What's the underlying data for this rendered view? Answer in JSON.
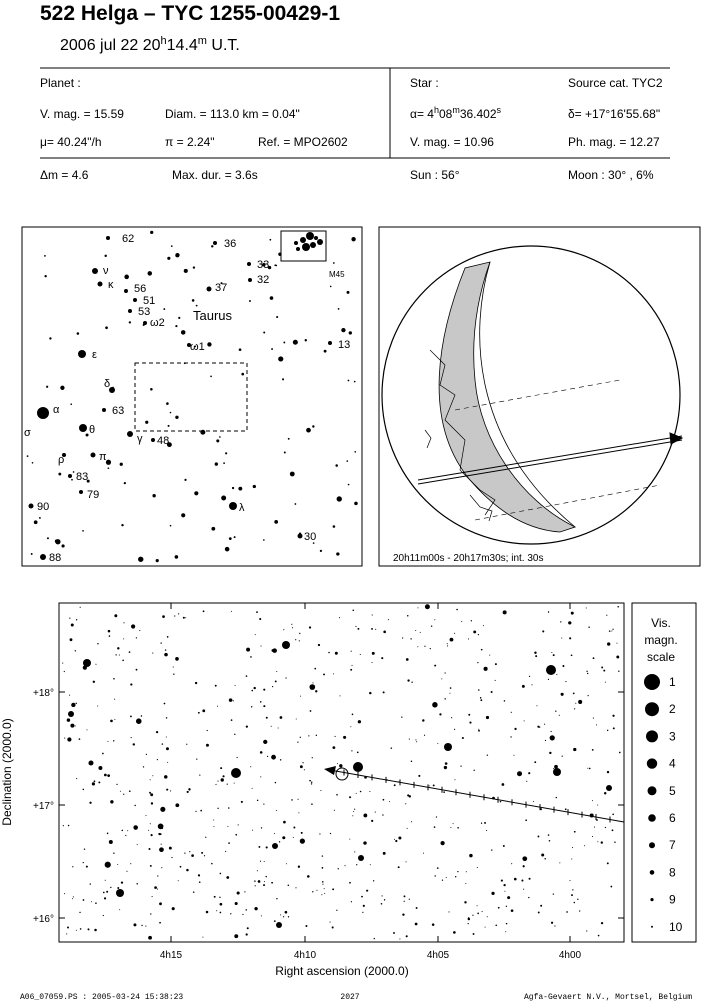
{
  "header": {
    "title": "522 Helga  –  TYC 1255-00429-1",
    "date": [
      "2006 jul 22  20",
      "h",
      "14.4",
      "m",
      " U.T."
    ]
  },
  "planet": {
    "label": "Planet :",
    "vmag": "V. mag. = 15.59",
    "diam": "Diam. = 113.0 km = 0.04\"",
    "mu": "μ= 40.24\"/h",
    "pi": "π = 2.24\"",
    "ref": "Ref. = MPO2602"
  },
  "star": {
    "label": "Star :",
    "source": "Source cat.  TYC2",
    "ra": [
      "α= 4",
      "h",
      "08",
      "m",
      "36.402",
      "s"
    ],
    "dec": "δ= +17°16'55.68\"",
    "vmag": "V. mag. = 10.96",
    "phmag": "Ph. mag. = 12.27"
  },
  "event": {
    "dm": "Δm = 4.6",
    "maxdur": "Max. dur. = 3.6s",
    "sun": "Sun :  56°",
    "moon": "Moon :  30° ,  6%"
  },
  "finder": {
    "labels": [
      "62",
      "36",
      "33",
      "32",
      "37",
      "ν",
      "κ",
      "56",
      "51",
      "53",
      "ω2",
      "Taurus",
      "M45",
      "13",
      "ω1",
      "ε",
      "δ",
      "63",
      "α",
      "θ",
      "σ",
      "γ",
      "48",
      "ρ",
      "π",
      "83",
      "79",
      "90",
      "λ",
      "30",
      "88"
    ]
  },
  "globe": {
    "caption": "20h11m00s - 20h17m30s; int. 30s"
  },
  "chart": {
    "yticks": [
      "+18°",
      "+17°",
      "+16°"
    ],
    "xticks": [
      "4h15",
      "4h10",
      "4h05",
      "4h00"
    ],
    "ylabel": "Declination (2000.0)",
    "xlabel": "Right ascension (2000.0)",
    "legend": {
      "title": [
        "Vis.",
        "magn.",
        "scale"
      ],
      "mags": [
        1,
        2,
        3,
        4,
        5,
        6,
        7,
        8,
        9,
        10
      ]
    }
  },
  "footer": {
    "file": "A06_07059.PS : 2005-03-24 15:38:23",
    "page": "2027",
    "company": "Agfa-Gevaert N.V., Mortsel, Belgium"
  }
}
